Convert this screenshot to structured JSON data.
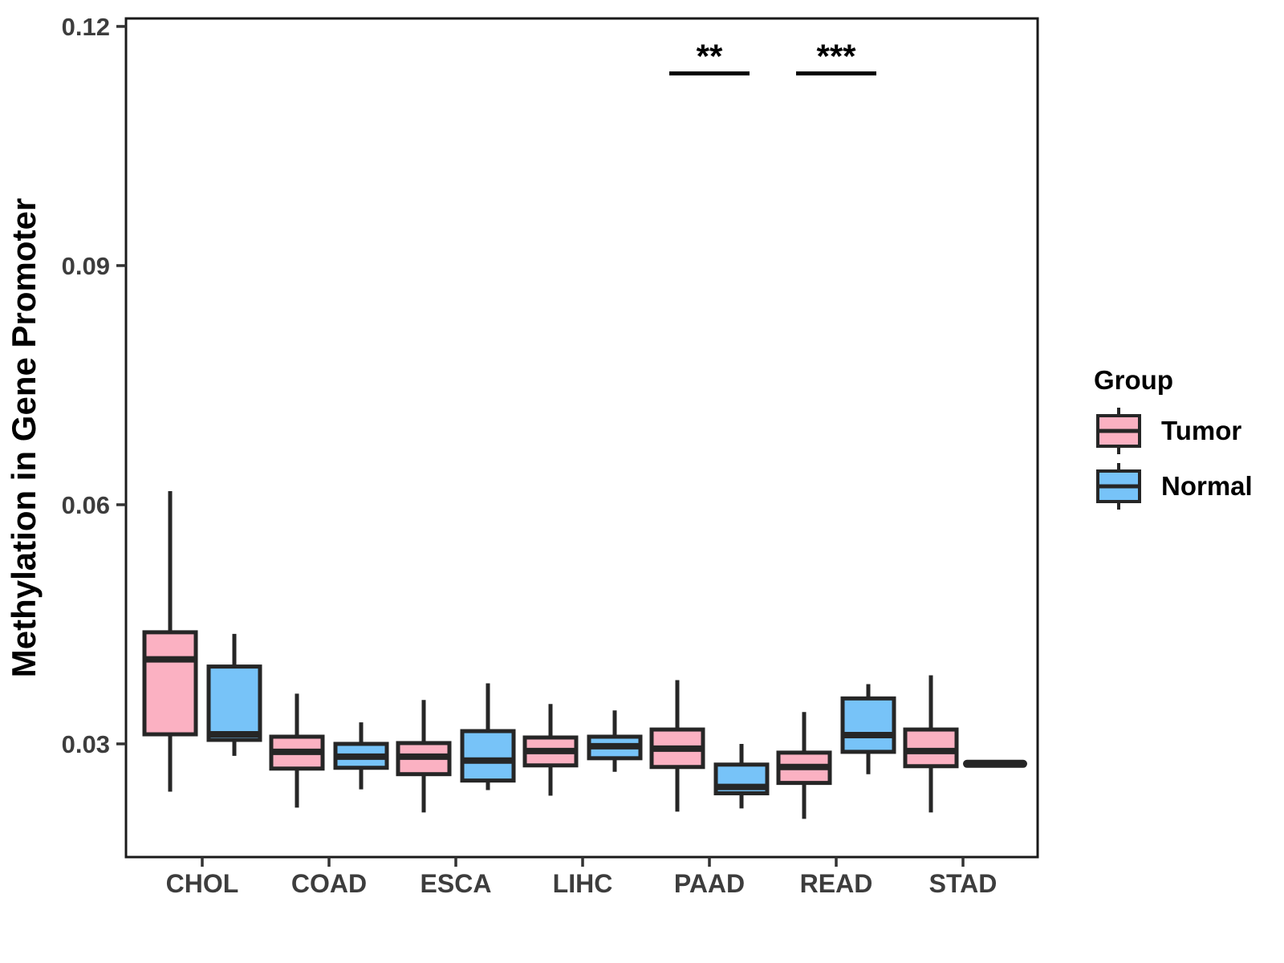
{
  "figure": {
    "background": "#FFFFFF",
    "kind": "grouped-boxplot-figure"
  },
  "chart_data": {
    "type": "boxplot",
    "title": "",
    "xlabel": "",
    "ylabel": "Methylation in Gene Promoter",
    "categories": [
      "CHOL",
      "COAD",
      "ESCA",
      "LIHC",
      "PAAD",
      "READ",
      "STAD"
    ],
    "series": [
      {
        "name": "Tumor",
        "color": "#FBB1C2",
        "boxes": [
          {
            "category": "CHOL",
            "min": 0.024,
            "q1": 0.0312,
            "median": 0.0406,
            "q3": 0.044,
            "max": 0.0617
          },
          {
            "category": "COAD",
            "min": 0.022,
            "q1": 0.0269,
            "median": 0.029,
            "q3": 0.0309,
            "max": 0.0363
          },
          {
            "category": "ESCA",
            "min": 0.0214,
            "q1": 0.0262,
            "median": 0.0284,
            "q3": 0.0301,
            "max": 0.0355
          },
          {
            "category": "LIHC",
            "min": 0.0235,
            "q1": 0.0273,
            "median": 0.0291,
            "q3": 0.0308,
            "max": 0.035
          },
          {
            "category": "PAAD",
            "min": 0.0215,
            "q1": 0.0271,
            "median": 0.0294,
            "q3": 0.0318,
            "max": 0.038
          },
          {
            "category": "READ",
            "min": 0.0206,
            "q1": 0.0251,
            "median": 0.0271,
            "q3": 0.0289,
            "max": 0.034
          },
          {
            "category": "STAD",
            "min": 0.0214,
            "q1": 0.0272,
            "median": 0.0291,
            "q3": 0.0318,
            "max": 0.0386
          }
        ]
      },
      {
        "name": "Normal",
        "color": "#77C3F8",
        "boxes": [
          {
            "category": "CHOL",
            "min": 0.0285,
            "q1": 0.0305,
            "median": 0.0312,
            "q3": 0.0397,
            "max": 0.0438
          },
          {
            "category": "COAD",
            "min": 0.0243,
            "q1": 0.027,
            "median": 0.0284,
            "q3": 0.03,
            "max": 0.0327
          },
          {
            "category": "ESCA",
            "min": 0.0242,
            "q1": 0.0254,
            "median": 0.0279,
            "q3": 0.0316,
            "max": 0.0376
          },
          {
            "category": "LIHC",
            "min": 0.0265,
            "q1": 0.0282,
            "median": 0.0297,
            "q3": 0.0309,
            "max": 0.0342
          },
          {
            "category": "PAAD",
            "min": 0.0219,
            "q1": 0.0238,
            "median": 0.0246,
            "q3": 0.0274,
            "max": 0.03
          },
          {
            "category": "READ",
            "min": 0.0262,
            "q1": 0.029,
            "median": 0.0311,
            "q3": 0.0357,
            "max": 0.0375
          },
          {
            "category": "STAD",
            "min": 0.0275,
            "q1": 0.0275,
            "median": 0.0275,
            "q3": 0.0275,
            "max": 0.0275
          }
        ]
      }
    ],
    "yticks": [
      0.03,
      0.06,
      0.09,
      0.12
    ],
    "ytick_labels": [
      "0.03",
      "0.06",
      "0.09",
      "0.12"
    ],
    "ylim": [
      0.0158,
      0.121
    ],
    "grid": false,
    "legend": {
      "title": "Group",
      "position": "right",
      "entries": [
        {
          "label": "Tumor",
          "color": "#FBB1C2"
        },
        {
          "label": "Normal",
          "color": "#77C3F8"
        }
      ]
    },
    "significance": [
      {
        "category": "PAAD",
        "label": "**",
        "bar_value": 0.1141
      },
      {
        "category": "READ",
        "label": "***",
        "bar_value": 0.1141
      }
    ],
    "style": {
      "box_stroke": "#262626",
      "panel_border": "#1A1A1A",
      "tick_text_color": "#3D3D3D",
      "title_text_color": "#000000",
      "background": "#FFFFFF"
    }
  }
}
